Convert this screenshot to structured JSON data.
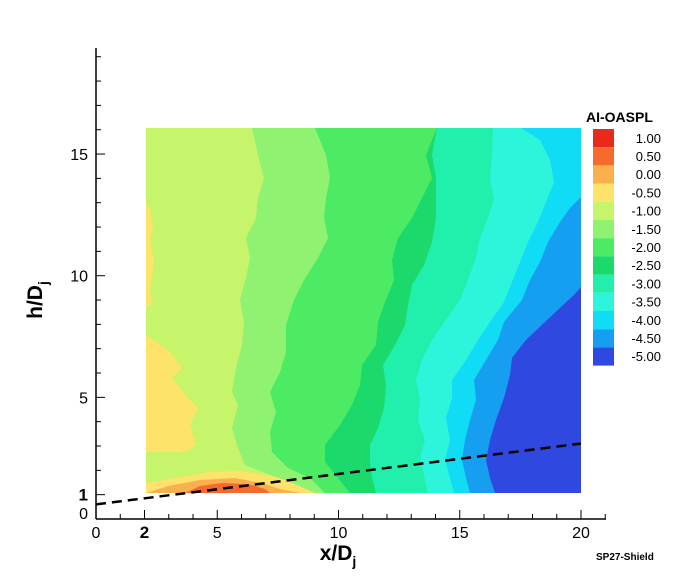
{
  "chart_data": {
    "type": "heatmap",
    "title": "",
    "xlabel": "x/D",
    "xlabel_sub": "j",
    "ylabel": "h/D",
    "ylabel_sub": "j",
    "xlim": [
      0,
      21
    ],
    "ylim": [
      0,
      19
    ],
    "data_extent": {
      "x": [
        2,
        20
      ],
      "y": [
        1,
        16
      ]
    },
    "x_ticks": [
      {
        "value": 0,
        "label": "0"
      },
      {
        "value": 2,
        "label": "2",
        "bold": true
      },
      {
        "value": 5,
        "label": "5"
      },
      {
        "value": 10,
        "label": "10"
      },
      {
        "value": 15,
        "label": "15"
      },
      {
        "value": 20,
        "label": "20"
      }
    ],
    "y_ticks": [
      {
        "value": 0,
        "label": "0"
      },
      {
        "value": 1,
        "label": "1",
        "bold": true
      },
      {
        "value": 5,
        "label": "5"
      },
      {
        "value": 10,
        "label": "10"
      },
      {
        "value": 15,
        "label": "15"
      }
    ],
    "legend": {
      "title": "AI-OASPL",
      "placement": "right",
      "levels": [
        {
          "label": "1.00",
          "color": "#e8291c"
        },
        {
          "label": "0.50",
          "color": "#f66a2c"
        },
        {
          "label": "0.00",
          "color": "#fbb04e"
        },
        {
          "label": "-0.50",
          "color": "#fde36a"
        },
        {
          "label": "-1.00",
          "color": "#c6f56b"
        },
        {
          "label": "-1.50",
          "color": "#8ff270"
        },
        {
          "label": "-2.00",
          "color": "#4deb63"
        },
        {
          "label": "-2.50",
          "color": "#1bd96a"
        },
        {
          "label": "-3.00",
          "color": "#21f0ad"
        },
        {
          "label": "-3.50",
          "color": "#2cf5dc"
        },
        {
          "label": "-4.00",
          "color": "#10ddf5"
        },
        {
          "label": "-4.50",
          "color": "#169ef0"
        },
        {
          "label": "-5.00",
          "color": "#2e48e0"
        }
      ]
    },
    "contour_bands": [
      {
        "color": "#c6f56b",
        "x": [
          2,
          6.8
        ],
        "y": [
          1,
          16
        ]
      },
      {
        "color": "#8ff270",
        "x": [
          6.0,
          9.8
        ],
        "y": [
          1,
          16
        ]
      },
      {
        "color": "#4deb63",
        "x": [
          8.5,
          11.5
        ],
        "y": [
          1,
          16
        ]
      },
      {
        "color": "#1bd96a",
        "x": [
          10.5,
          13.6
        ],
        "y": [
          1,
          16
        ]
      },
      {
        "color": "#21f0ad",
        "x": [
          12.3,
          16.3
        ],
        "y": [
          1,
          16
        ]
      },
      {
        "color": "#2cf5dc",
        "x": [
          14.3,
          18.6
        ],
        "y": [
          1,
          16
        ]
      },
      {
        "color": "#10ddf5",
        "x": [
          15.4,
          20
        ],
        "y": [
          1,
          16
        ]
      },
      {
        "color": "#169ef0",
        "x": [
          16.0,
          20
        ],
        "y": [
          1,
          13.6
        ]
      },
      {
        "color": "#2e48e0",
        "x": [
          17.0,
          20
        ],
        "y": [
          1,
          9.8
        ]
      }
    ],
    "dashed_line": {
      "x": [
        0,
        20
      ],
      "y": [
        0.6,
        3.1
      ]
    },
    "annotation": "SP27-Shield"
  }
}
